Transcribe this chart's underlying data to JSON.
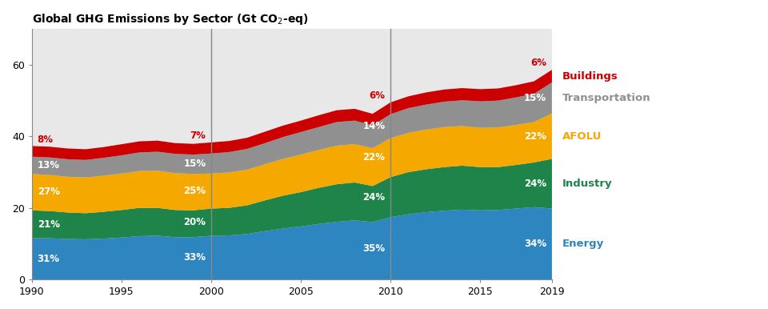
{
  "title": "Global GHG Emissions by Sector (Gt CO₂-eq)",
  "years": [
    1990,
    1991,
    1992,
    1993,
    1994,
    1995,
    1996,
    1997,
    1998,
    1999,
    2000,
    2001,
    2002,
    2003,
    2004,
    2005,
    2006,
    2007,
    2008,
    2009,
    2010,
    2011,
    2012,
    2013,
    2014,
    2015,
    2016,
    2017,
    2018,
    2019
  ],
  "energy": [
    11.5,
    11.5,
    11.3,
    11.2,
    11.4,
    11.7,
    12.1,
    12.2,
    11.8,
    11.8,
    12.2,
    12.3,
    12.7,
    13.5,
    14.2,
    14.8,
    15.5,
    16.1,
    16.5,
    16.0,
    17.4,
    18.2,
    18.8,
    19.2,
    19.5,
    19.3,
    19.4,
    19.8,
    20.2,
    19.8
  ],
  "industry": [
    7.8,
    7.6,
    7.4,
    7.3,
    7.5,
    7.7,
    7.9,
    7.8,
    7.6,
    7.5,
    7.6,
    7.7,
    8.0,
    8.6,
    9.2,
    9.6,
    10.1,
    10.5,
    10.6,
    10.1,
    11.2,
    11.8,
    12.0,
    12.2,
    12.3,
    12.1,
    12.0,
    12.2,
    12.5,
    13.9
  ],
  "afolu": [
    10.2,
    10.1,
    10.0,
    10.0,
    10.1,
    10.2,
    10.3,
    10.4,
    10.3,
    10.2,
    9.8,
    9.9,
    10.0,
    10.1,
    10.3,
    10.5,
    10.6,
    10.8,
    10.7,
    10.6,
    10.9,
    11.0,
    11.1,
    11.2,
    11.1,
    11.0,
    11.1,
    11.2,
    11.3,
    12.7
  ],
  "transportation": [
    4.8,
    4.9,
    4.9,
    4.9,
    5.0,
    5.1,
    5.2,
    5.3,
    5.4,
    5.4,
    5.6,
    5.7,
    5.8,
    5.9,
    6.1,
    6.3,
    6.4,
    6.6,
    6.6,
    6.4,
    6.7,
    6.9,
    7.0,
    7.1,
    7.2,
    7.4,
    7.5,
    7.7,
    7.9,
    8.7
  ],
  "buildings": [
    3.0,
    3.0,
    3.0,
    3.0,
    3.0,
    3.1,
    3.1,
    3.1,
    3.0,
    3.0,
    3.1,
    3.1,
    3.1,
    3.2,
    3.2,
    3.2,
    3.3,
    3.3,
    3.3,
    3.2,
    3.3,
    3.3,
    3.4,
    3.4,
    3.4,
    3.4,
    3.4,
    3.4,
    3.5,
    3.5
  ],
  "colors": {
    "energy": "#2e86c1",
    "industry": "#1e8449",
    "afolu": "#f5a800",
    "transportation": "#909090",
    "buildings": "#cc0000"
  },
  "legend_text_colors": {
    "buildings": "#cc0000",
    "transportation": "#909090",
    "afolu": "#f5a800",
    "industry": "#1e8449",
    "energy": "#2e86c1"
  },
  "vline_color": "#888888",
  "vlines": [
    2000,
    2010
  ],
  "ylim": [
    0,
    70
  ],
  "yticks": [
    0,
    20,
    40,
    60
  ],
  "xticks": [
    1990,
    1995,
    2000,
    2005,
    2010,
    2015,
    2019
  ],
  "background_color": "#e8e8e8",
  "annotations": {
    "1990": {
      "x": 1990,
      "side": "right",
      "energy": {
        "pct": "31%",
        "color": "white"
      },
      "industry": {
        "pct": "21%",
        "color": "white"
      },
      "afolu": {
        "pct": "27%",
        "color": "white"
      },
      "transportation": {
        "pct": "13%",
        "color": "white"
      },
      "buildings": {
        "pct": "8%",
        "color": "#cc0000"
      }
    },
    "2000": {
      "x": 2000,
      "side": "left",
      "energy": {
        "pct": "33%",
        "color": "white"
      },
      "industry": {
        "pct": "20%",
        "color": "white"
      },
      "afolu": {
        "pct": "25%",
        "color": "white"
      },
      "transportation": {
        "pct": "15%",
        "color": "white"
      },
      "buildings": {
        "pct": "7%",
        "color": "#cc0000"
      }
    },
    "2010": {
      "x": 2010,
      "side": "left",
      "energy": {
        "pct": "35%",
        "color": "white"
      },
      "industry": {
        "pct": "24%",
        "color": "white"
      },
      "afolu": {
        "pct": "22%",
        "color": "white"
      },
      "transportation": {
        "pct": "14%",
        "color": "white"
      },
      "buildings": {
        "pct": "6%",
        "color": "#cc0000"
      }
    },
    "2019": {
      "x": 2019,
      "side": "left",
      "energy": {
        "pct": "34%",
        "color": "white"
      },
      "industry": {
        "pct": "24%",
        "color": "white"
      },
      "afolu": {
        "pct": "22%",
        "color": "white"
      },
      "transportation": {
        "pct": "15%",
        "color": "white"
      },
      "buildings": {
        "pct": "6%",
        "color": "#cc0000"
      }
    }
  }
}
